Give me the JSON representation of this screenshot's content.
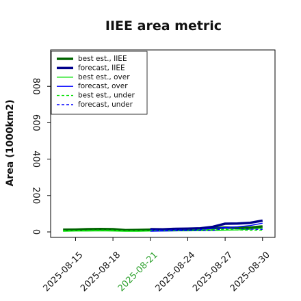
{
  "chart_data": {
    "type": "line",
    "title": "IIEE area metric",
    "xlabel": "",
    "ylabel": "Area (1000km2)",
    "ylim": [
      -30,
      1000
    ],
    "xlim": [
      "2025-08-13",
      "2025-08-31"
    ],
    "yticks": [
      0,
      200,
      400,
      600,
      800
    ],
    "xticks": [
      "2025-08-15",
      "2025-08-18",
      "2025-08-21",
      "2025-08-24",
      "2025-08-27",
      "2025-08-30"
    ],
    "highlighted_xtick": "2025-08-21",
    "highlight_color": "#2ca02c",
    "grid": false,
    "legend_position": "top-left",
    "legend": [
      "best est., IIEE",
      "forecast, IIEE",
      "best est., over",
      "forecast, over",
      "best est., under",
      "forecast, under"
    ],
    "series": [
      {
        "name": "best est., IIEE",
        "color": "#006400",
        "style": "solid",
        "width": "thick",
        "x": [
          "2025-08-14",
          "2025-08-15",
          "2025-08-16",
          "2025-08-17",
          "2025-08-18",
          "2025-08-19",
          "2025-08-20",
          "2025-08-21",
          "2025-08-22",
          "2025-08-23",
          "2025-08-24",
          "2025-08-25",
          "2025-08-26",
          "2025-08-27",
          "2025-08-28",
          "2025-08-29",
          "2025-08-30"
        ],
        "values": [
          12,
          13,
          15,
          16,
          15,
          10,
          11,
          12,
          14,
          14,
          16,
          18,
          20,
          24,
          22,
          24,
          30
        ]
      },
      {
        "name": "forecast, IIEE",
        "color": "#00008b",
        "style": "solid",
        "width": "thick",
        "x": [
          "2025-08-21",
          "2025-08-22",
          "2025-08-23",
          "2025-08-24",
          "2025-08-25",
          "2025-08-26",
          "2025-08-27",
          "2025-08-28",
          "2025-08-29",
          "2025-08-30"
        ],
        "values": [
          15,
          14,
          17,
          18,
          20,
          28,
          45,
          46,
          50,
          62
        ]
      },
      {
        "name": "best est., over",
        "color": "#00e000",
        "style": "solid",
        "width": "thin",
        "x": [
          "2025-08-14",
          "2025-08-15",
          "2025-08-16",
          "2025-08-17",
          "2025-08-18",
          "2025-08-19",
          "2025-08-20",
          "2025-08-21",
          "2025-08-22",
          "2025-08-23",
          "2025-08-24",
          "2025-08-25",
          "2025-08-26",
          "2025-08-27",
          "2025-08-28",
          "2025-08-29",
          "2025-08-30"
        ],
        "values": [
          4,
          5,
          5,
          6,
          5,
          4,
          4,
          5,
          5,
          6,
          6,
          7,
          8,
          10,
          11,
          15,
          20
        ]
      },
      {
        "name": "forecast, over",
        "color": "#0000ff",
        "style": "solid",
        "width": "thin",
        "x": [
          "2025-08-21",
          "2025-08-22",
          "2025-08-23",
          "2025-08-24",
          "2025-08-25",
          "2025-08-26",
          "2025-08-27",
          "2025-08-28",
          "2025-08-29",
          "2025-08-30"
        ],
        "values": [
          4,
          5,
          6,
          8,
          12,
          20,
          25,
          28,
          35,
          48
        ]
      },
      {
        "name": "best est., under",
        "color": "#00e000",
        "style": "dashed",
        "width": "thin",
        "x": [
          "2025-08-14",
          "2025-08-15",
          "2025-08-16",
          "2025-08-17",
          "2025-08-18",
          "2025-08-19",
          "2025-08-20",
          "2025-08-21",
          "2025-08-22",
          "2025-08-23",
          "2025-08-24",
          "2025-08-25",
          "2025-08-26",
          "2025-08-27",
          "2025-08-28",
          "2025-08-29",
          "2025-08-30"
        ],
        "values": [
          8,
          8,
          9,
          10,
          10,
          6,
          7,
          7,
          9,
          8,
          10,
          11,
          12,
          14,
          11,
          9,
          10
        ]
      },
      {
        "name": "forecast, under",
        "color": "#0000ff",
        "style": "dashed",
        "width": "thin",
        "x": [
          "2025-08-21",
          "2025-08-22",
          "2025-08-23",
          "2025-08-24",
          "2025-08-25",
          "2025-08-26",
          "2025-08-27",
          "2025-08-28",
          "2025-08-29",
          "2025-08-30"
        ],
        "values": [
          11,
          9,
          11,
          10,
          8,
          8,
          20,
          18,
          15,
          14
        ]
      }
    ]
  }
}
